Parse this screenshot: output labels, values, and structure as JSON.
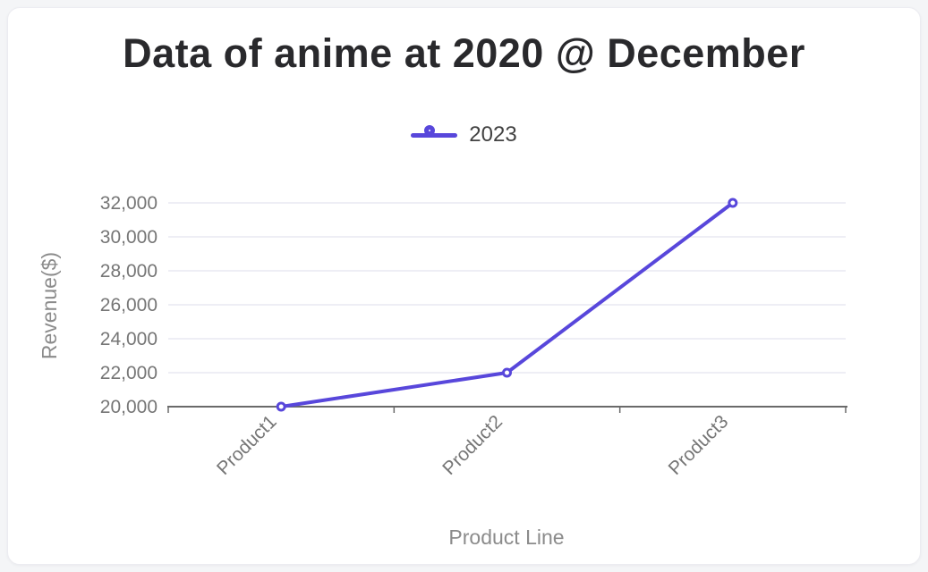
{
  "colors": {
    "page_bg": "#f4f5f7",
    "card_bg": "#ffffff",
    "card_border": "#ececf1",
    "accent": "#5847db",
    "grid": "#e8e8f2",
    "axis": "#6a6a6a",
    "tick_text": "#767676",
    "axis_title_text": "#8b8b8b",
    "title_text": "#29292c",
    "legend_text": "#424242"
  },
  "chart_data": {
    "type": "line",
    "title": "Data of anime at 2020 @ December",
    "categories": [
      "Product1",
      "Product2",
      "Product3"
    ],
    "series": [
      {
        "name": "2023",
        "values": [
          20000,
          22000,
          32000
        ],
        "color": "#5847db",
        "marker": "hollow-circle"
      }
    ],
    "xlabel": "Product Line",
    "ylabel": "Revenue($)",
    "ylim": [
      20000,
      32000
    ],
    "yticks": [
      20000,
      22000,
      24000,
      26000,
      28000,
      30000,
      32000
    ],
    "ytick_labels": [
      "20,000",
      "22,000",
      "24,000",
      "26,000",
      "28,000",
      "30,000",
      "32,000"
    ],
    "grid": true,
    "legend_position": "top-center",
    "x_tick_label_rotation_deg": -45
  }
}
